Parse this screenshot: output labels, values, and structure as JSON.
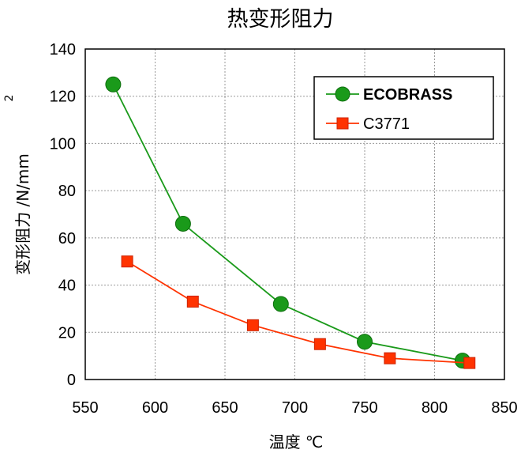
{
  "chart_data": {
    "type": "line",
    "title": "热变形阻力",
    "xlabel": "温度 ℃",
    "ylabel": "变形阻力 /N/mm",
    "ylabel_sup": "2",
    "xlim": [
      550,
      850
    ],
    "ylim": [
      0,
      140
    ],
    "xticks": [
      550,
      600,
      650,
      700,
      750,
      800,
      850
    ],
    "yticks": [
      0,
      20,
      40,
      60,
      80,
      100,
      120,
      140
    ],
    "grid": true,
    "legend_position": "top-right",
    "series": [
      {
        "name": "ECOBRASS",
        "marker": "circle",
        "color": "#1a9a1a",
        "x": [
          570,
          620,
          690,
          750,
          820
        ],
        "y": [
          125,
          66,
          32,
          16,
          8
        ]
      },
      {
        "name": "C3771",
        "marker": "square",
        "color": "#ff3300",
        "x": [
          580,
          627,
          670,
          718,
          768,
          825
        ],
        "y": [
          50,
          33,
          23,
          15,
          9,
          7
        ]
      }
    ]
  }
}
